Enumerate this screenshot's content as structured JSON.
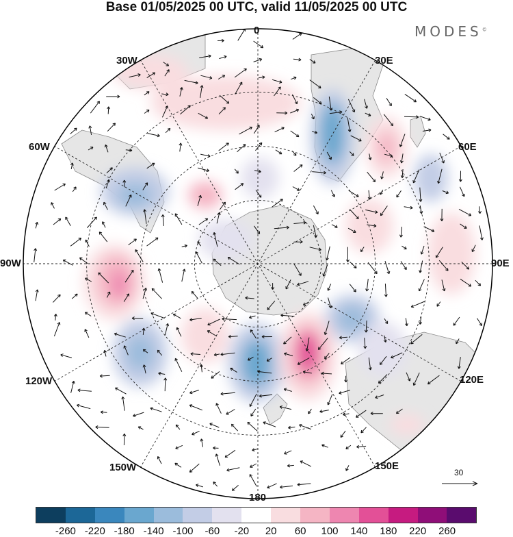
{
  "title": "Base 01/05/2025 00 UTC, valid 11/05/2025 00 UTC",
  "brand": "MODES",
  "brand_mark": "©",
  "longitude_labels": {
    "lon_0": "0",
    "lon_30e": "30E",
    "lon_60e": "60E",
    "lon_90e": "90E",
    "lon_120e": "120E",
    "lon_150e": "150E",
    "lon_180": "180",
    "lon_150w": "150W",
    "lon_120w": "120W",
    "lon_90w": "90W",
    "lon_60w": "60W",
    "lon_30w": "30W"
  },
  "reference_vector": "30",
  "colorbar": {
    "colors": [
      "#0d3e5e",
      "#1c6797",
      "#3a87bd",
      "#6aa7cf",
      "#9bbcdc",
      "#c3cde6",
      "#e3e1ef",
      "#ffffff",
      "#f9dde0",
      "#f5b5c4",
      "#ee86b0",
      "#e35097",
      "#c61b80",
      "#8f0e78",
      "#5a0c6e"
    ],
    "ticks": [
      "-260",
      "-220",
      "-180",
      "-140",
      "-100",
      "-60",
      "-20",
      "20",
      "60",
      "100",
      "140",
      "180",
      "220",
      "260"
    ]
  },
  "colors": {
    "land": "#e6e6e6",
    "coast": "#888888",
    "graticule": "#222222",
    "arrow": "#111111"
  }
}
